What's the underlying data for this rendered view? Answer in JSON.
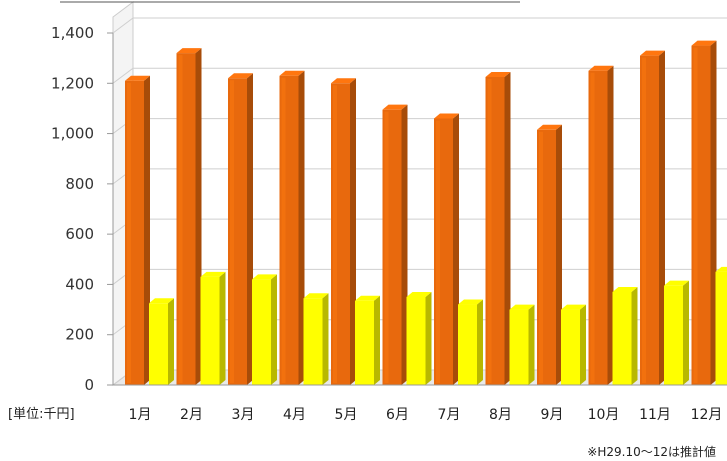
{
  "chart_data": {
    "type": "bar",
    "title": "",
    "xlabel": "",
    "ylabel": "",
    "unit_label": "[単位:千円]",
    "note": "※H29.10～12は推計値",
    "categories": [
      "1月",
      "2月",
      "3月",
      "4月",
      "5月",
      "6月",
      "7月",
      "8月",
      "9月",
      "10月",
      "11月",
      "12月"
    ],
    "series": [
      {
        "color": "#e8690d",
        "values": [
          1210,
          1320,
          1220,
          1230,
          1200,
          1095,
          1060,
          1225,
          1015,
          1250,
          1310,
          1350
        ]
      },
      {
        "color": "#ffff00",
        "values": [
          325,
          430,
          420,
          345,
          335,
          350,
          320,
          300,
          300,
          370,
          395,
          450
        ]
      }
    ],
    "ylim": [
      0,
      1400
    ],
    "yticks": [
      0,
      200,
      400,
      600,
      800,
      1000,
      1200,
      1400
    ],
    "ytick_labels": [
      "0",
      "200",
      "400",
      "600",
      "800",
      "1,000",
      "1,200",
      "1,400"
    ],
    "grid": true,
    "style": "3d-clustered-column"
  }
}
